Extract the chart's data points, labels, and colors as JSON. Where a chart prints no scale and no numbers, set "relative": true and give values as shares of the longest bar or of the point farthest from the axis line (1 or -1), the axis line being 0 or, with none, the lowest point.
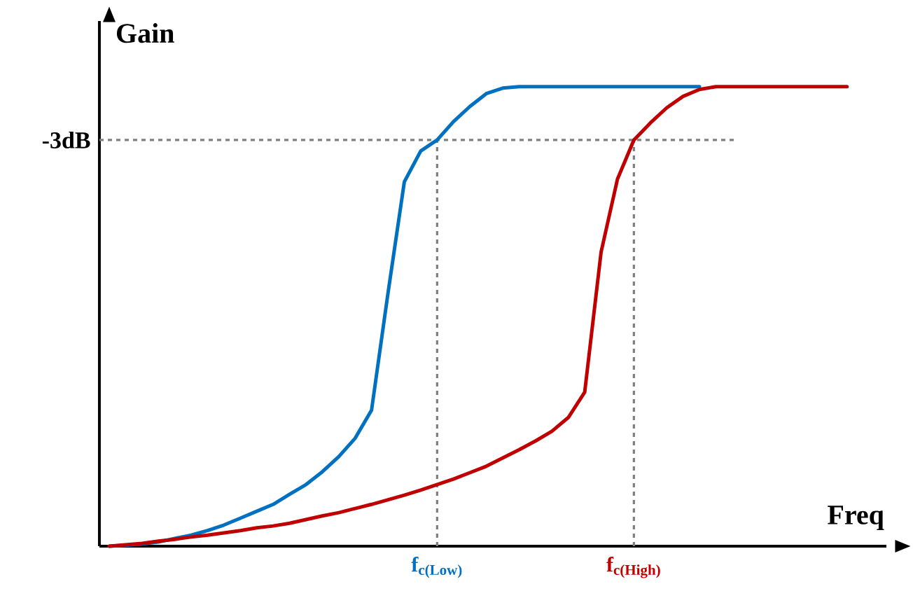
{
  "chart_data": {
    "type": "line",
    "relative": true,
    "xlabel": "Freq",
    "ylabel": "Gain",
    "categories": [
      null,
      null,
      null,
      null,
      null,
      null,
      null,
      null,
      null,
      null,
      null,
      null,
      null,
      null,
      null,
      null,
      null,
      null,
      null,
      null,
      "f$_{c(Low)}$",
      null,
      null,
      null,
      null,
      null,
      null,
      null,
      null,
      null,
      null,
      null,
      "f$_{c(High)}$",
      null,
      null,
      null,
      null,
      null,
      null,
      null,
      null,
      null,
      null,
      null,
      null,
      null
    ],
    "series": [
      {
        "color": "#0070c0",
        "values": [
          0,
          0.002,
          0.005,
          0.009,
          0.017,
          0.024,
          0.034,
          0.046,
          0.061,
          0.076,
          0.091,
          0.113,
          0.134,
          0.162,
          0.195,
          0.235,
          0.296,
          0.55,
          0.793,
          0.86,
          0.884,
          0.924,
          0.957,
          0.985,
          0.997,
          1,
          1,
          1,
          1,
          1,
          1,
          1,
          1,
          1,
          1,
          1,
          1,
          null,
          null,
          null,
          null,
          null,
          null,
          null,
          null,
          null
        ]
      },
      {
        "color": "#c00000",
        "values": [
          0,
          0.003,
          0.006,
          0.011,
          0.015,
          0.02,
          0.024,
          0.029,
          0.034,
          0.04,
          0.044,
          0.05,
          0.058,
          0.066,
          0.073,
          0.082,
          0.091,
          0.101,
          0.111,
          0.122,
          0.134,
          0.146,
          0.16,
          0.174,
          0.192,
          0.21,
          0.229,
          0.25,
          0.28,
          0.335,
          0.64,
          0.799,
          0.884,
          0.921,
          0.954,
          0.979,
          0.994,
          1,
          1,
          1,
          1,
          1,
          1,
          1,
          1,
          1
        ]
      }
    ],
    "ref_lines": [
      {
        "axis": "y",
        "value": 0.884,
        "label": "-3dB",
        "color": "#7f7f7f",
        "line_style": "dashed"
      },
      {
        "axis": "x",
        "value": "f$_{c(Low)}$",
        "color": "#7f7f7f",
        "line_style": "dashed"
      },
      {
        "axis": "x",
        "value": "f$_{c(High)}$",
        "color": "#7f7f7f",
        "line_style": "dashed"
      }
    ],
    "line_style": "solid",
    "marker": "none"
  }
}
